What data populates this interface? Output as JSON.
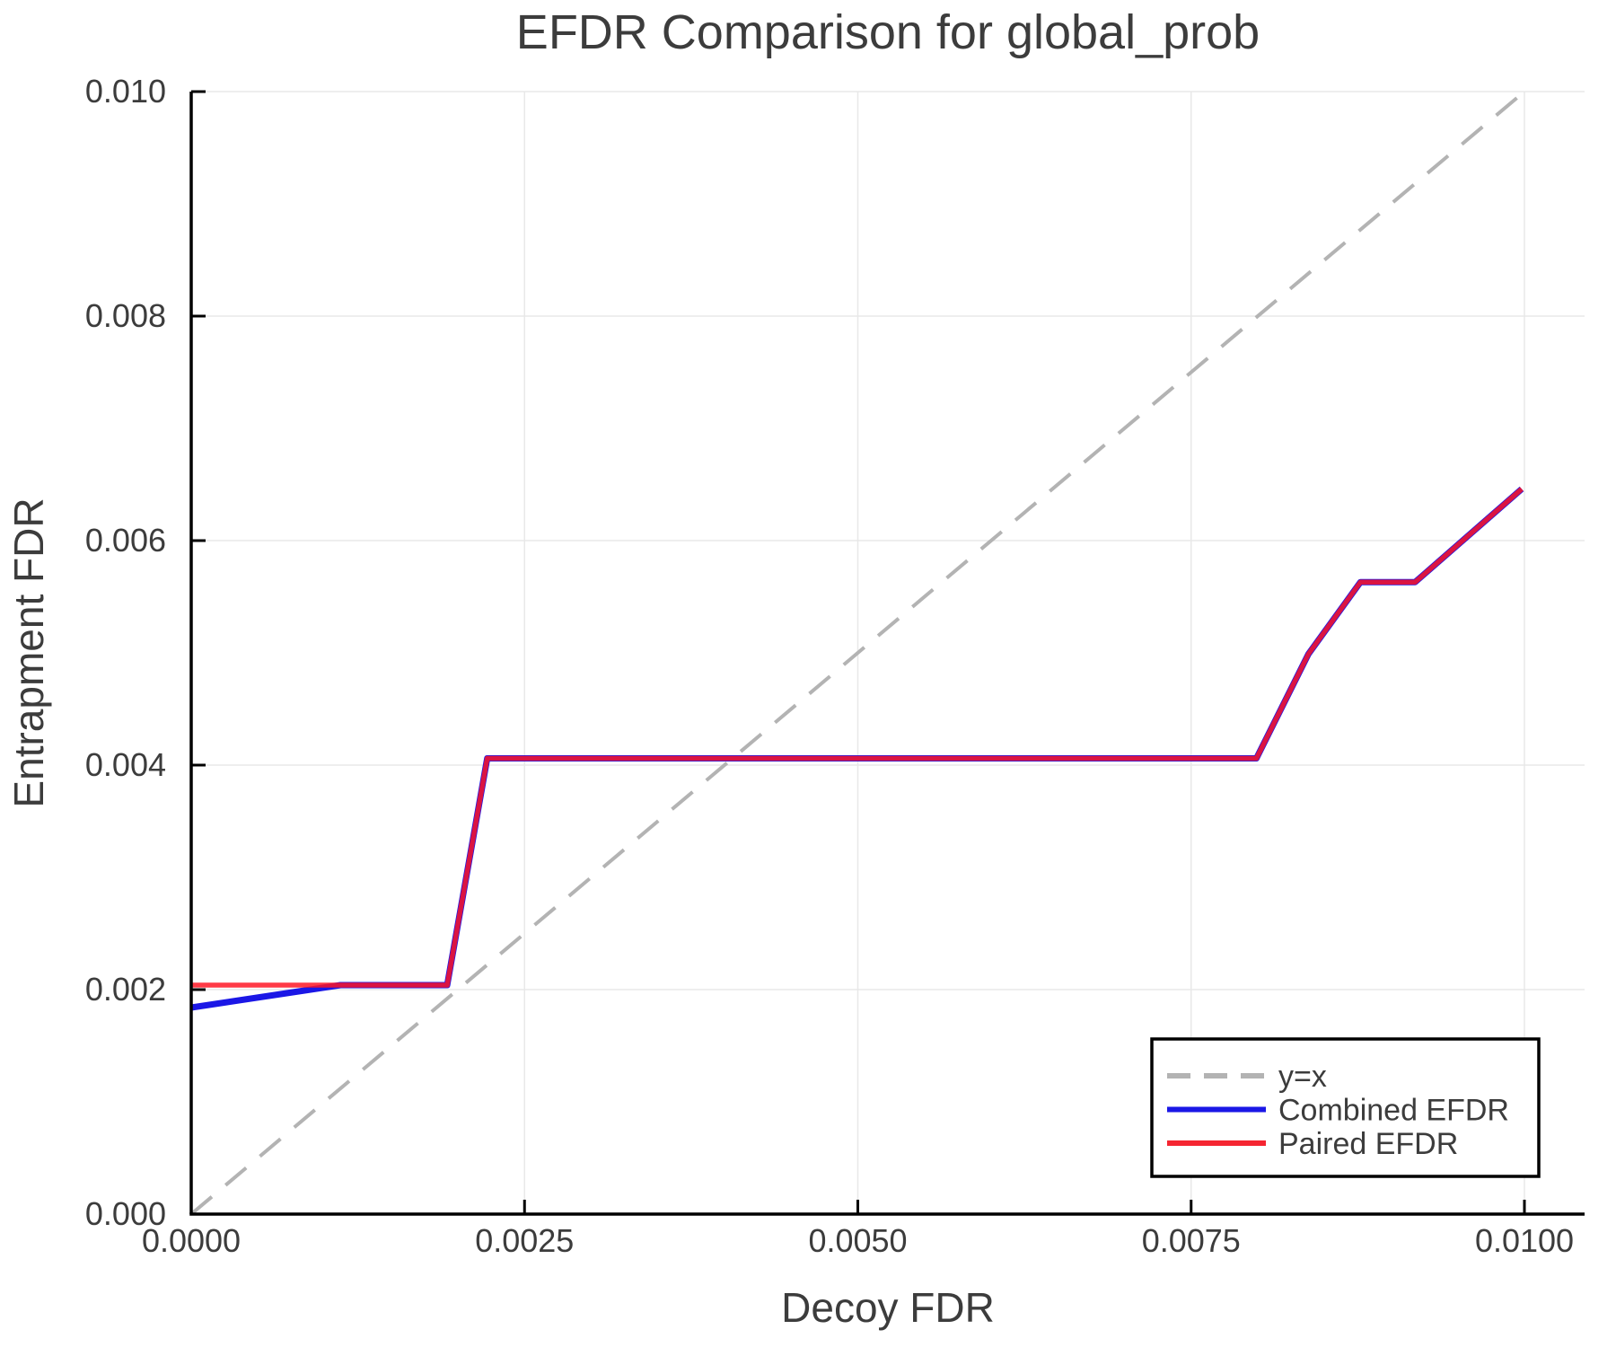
{
  "title": "EFDR Comparison for global_prob",
  "colors": {
    "background": "#ffffff",
    "text": "#3c3c3c",
    "spine": "#000000",
    "gridline": "#e8e8e8",
    "identity_line": "#b3b3b3",
    "combined_efdr": "#1b17e6",
    "paired_efdr": "#ff1423",
    "paired_overlap_effect": "#d61945",
    "legend_border": "#000000",
    "legend_background": "#ffffff"
  },
  "legend": {
    "position": "lower right",
    "entries": [
      {
        "label": "y=x",
        "style": "dashed",
        "color": "#b3b3b3"
      },
      {
        "label": "Combined EFDR",
        "style": "solid",
        "color": "#1b17e6"
      },
      {
        "label": "Paired EFDR",
        "style": "solid",
        "color": "#f52531"
      }
    ]
  },
  "chart_data": {
    "type": "line",
    "title": "EFDR Comparison for global_prob",
    "xlabel": "Decoy FDR",
    "ylabel": "Entrapment FDR",
    "xlim": [
      0.0,
      0.01045
    ],
    "ylim": [
      0.0,
      0.01
    ],
    "grid": true,
    "x_ticks": [
      0.0,
      0.0025,
      0.005,
      0.0075,
      0.01
    ],
    "x_tick_labels": [
      "0.0000",
      "0.0025",
      "0.0050",
      "0.0075",
      "0.0100"
    ],
    "y_ticks": [
      0.0,
      0.002,
      0.004,
      0.006,
      0.008,
      0.01
    ],
    "y_tick_labels": [
      "0.000",
      "0.002",
      "0.004",
      "0.006",
      "0.008",
      "0.010"
    ],
    "legend_position": "lower right",
    "series": [
      {
        "name": "y=x",
        "style": "dashed",
        "color": "#b3b3b3",
        "width": 4,
        "opacity": 1,
        "x": [
          0.0,
          0.01
        ],
        "y": [
          0.0,
          0.01
        ]
      },
      {
        "name": "Combined EFDR",
        "style": "solid",
        "color": "#1b17e6",
        "width": 7,
        "opacity": 1,
        "x": [
          0.0,
          0.00112,
          0.00192,
          0.00222,
          0.00799,
          0.00838,
          0.00877,
          0.00918,
          0.00998
        ],
        "y": [
          0.00184,
          0.00204,
          0.00204,
          0.00406,
          0.00406,
          0.00499,
          0.00563,
          0.00563,
          0.00646
        ]
      },
      {
        "name": "Paired EFDR",
        "style": "solid",
        "color": "#ff1423",
        "width": 5.5,
        "opacity": 0.84,
        "x": [
          0.0,
          0.00192,
          0.00222,
          0.00799,
          0.00838,
          0.00877,
          0.00918,
          0.00998
        ],
        "y": [
          0.00204,
          0.00204,
          0.00406,
          0.00406,
          0.00499,
          0.00563,
          0.00563,
          0.00646
        ]
      }
    ]
  }
}
